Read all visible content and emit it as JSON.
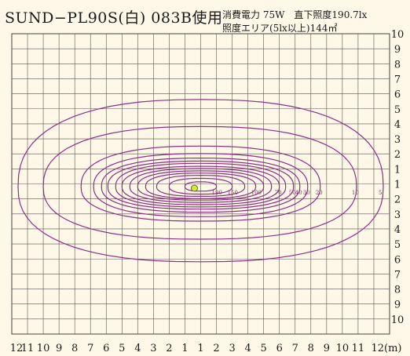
{
  "title": "SUND−PL90S(白) 083B使用",
  "spec_line1": "消費電力 75W　直下照度190.7lx",
  "spec_line2": "照度エリア(5lx以上)144㎡",
  "colors": {
    "background": "#fff8e8",
    "grid": "#555555",
    "contour": "#8e2f86",
    "center_marker": "#d8e83a"
  },
  "chart_data": {
    "type": "contour",
    "title": "SUND−PL90S(白) 083B使用",
    "x_tick_labels": [
      "12",
      "11",
      "10",
      "9",
      "8",
      "7",
      "6",
      "5",
      "4",
      "3",
      "2",
      "1",
      "1",
      "2",
      "3",
      "4",
      "5",
      "6",
      "7",
      "8",
      "9",
      "10",
      "11",
      "12(m)"
    ],
    "y_tick_labels": [
      "10",
      "9",
      "8",
      "7",
      "6",
      "5",
      "4",
      "3",
      "2",
      "1",
      "1",
      "2",
      "3",
      "4",
      "5",
      "6",
      "7",
      "8",
      "9",
      "10"
    ],
    "contour_labels": [
      "190",
      "150",
      "100",
      "70",
      "50",
      "40",
      "30",
      "20",
      "10",
      "5"
    ],
    "center_value": 190.7,
    "levels": [
      {
        "lux": 5,
        "x_left": -11.6,
        "x_right": 11.6,
        "y_up": 5.8,
        "y_down": 5.0
      },
      {
        "lux": 10,
        "x_left": -10.0,
        "x_right": 9.9,
        "y_up": 4.0,
        "y_down": 3.5
      },
      {
        "lux": 20,
        "x_left": -7.6,
        "x_right": 7.6,
        "y_up": 2.7,
        "y_down": 2.3
      },
      {
        "lux": 30,
        "x_left": -6.8,
        "x_right": 6.8,
        "y_up": 2.2,
        "y_down": 2.0
      },
      {
        "lux": 40,
        "x_left": -6.3,
        "x_right": 6.3,
        "y_up": 1.9,
        "y_down": 1.7
      },
      {
        "lux": 50,
        "x_left": -5.9,
        "x_right": 5.9,
        "y_up": 1.7,
        "y_down": 1.5
      },
      {
        "lux": 60,
        "x_left": -5.4,
        "x_right": 5.4,
        "y_up": 1.55,
        "y_down": 1.35
      },
      {
        "lux": 70,
        "x_left": -5.0,
        "x_right": 5.0,
        "y_up": 1.35,
        "y_down": 1.2
      },
      {
        "lux": 80,
        "x_left": -4.5,
        "x_right": 4.5,
        "y_up": 1.2,
        "y_down": 1.05
      },
      {
        "lux": 90,
        "x_left": -4.0,
        "x_right": 4.0,
        "y_up": 1.05,
        "y_down": 0.9
      },
      {
        "lux": 100,
        "x_left": -3.5,
        "x_right": 3.5,
        "y_up": 0.9,
        "y_down": 0.8
      },
      {
        "lux": 120,
        "x_left": -2.8,
        "x_right": 2.8,
        "y_up": 0.75,
        "y_down": 0.65
      },
      {
        "lux": 150,
        "x_left": -2.0,
        "x_right": 2.0,
        "y_up": 0.55,
        "y_down": 0.5
      },
      {
        "lux": 180,
        "x_left": -1.0,
        "x_right": 1.0,
        "y_up": 0.32,
        "y_down": 0.3
      }
    ]
  }
}
